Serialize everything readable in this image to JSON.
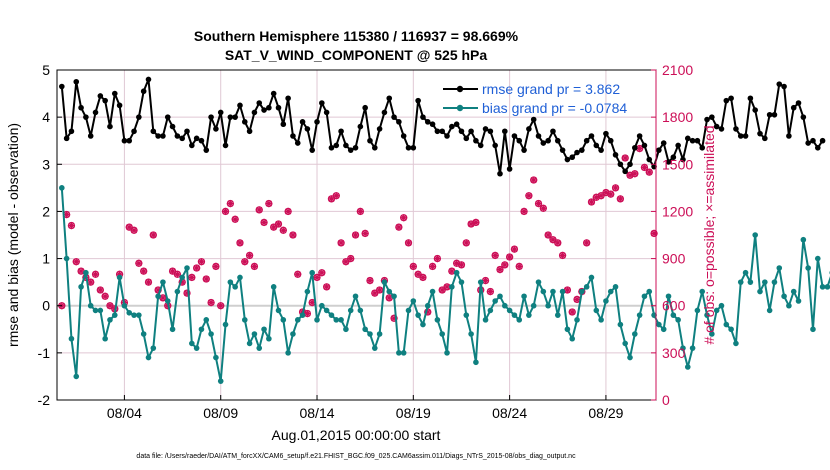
{
  "colors": {
    "rmse": "#000000",
    "bias": "#0f8080",
    "obs": "#cc0f57",
    "legend_text": "#1f5fd6",
    "grid": "#e0c8d4",
    "zero_line": "#cfcfcf"
  },
  "chart_data": {
    "type": "line",
    "title_line1": "Southern Hemisphere 115380 / 116937 = 98.669%",
    "title_line2": "SAT_V_WIND_COMPONENT @ 525 hPa",
    "ylabel_left": "rmse and bias (model - observation)",
    "ylabel_right": "# of obs: o=possible; ×=assimilated",
    "xlabel": "Aug.01,2015 00:00:00 start",
    "footer": "data file: /Users/raeder/DAI/ATM_forcXX/CAM6_setup/f.e21.FHIST_BGC.f09_025.CAM6assim.011/Diags_NTrS_2015-08/obs_diag_output.nc",
    "xlim": [
      0.5,
      31.6
    ],
    "ylim_left": [
      -2,
      5
    ],
    "ylim_right": [
      0,
      2100
    ],
    "yticks_left": [
      "-2",
      "-1",
      "0",
      "1",
      "2",
      "3",
      "4",
      "5"
    ],
    "yticks_right": [
      "0",
      "300",
      "600",
      "900",
      "1200",
      "1500",
      "1800",
      "2100"
    ],
    "xticks": [
      {
        "label": "08/04",
        "value": 4
      },
      {
        "label": "08/09",
        "value": 9
      },
      {
        "label": "08/14",
        "value": 14
      },
      {
        "label": "08/19",
        "value": 19
      },
      {
        "label": "08/24",
        "value": 24
      },
      {
        "label": "08/29",
        "value": 29
      }
    ],
    "legend": {
      "position": "top-right",
      "entries": [
        "rmse grand pr = 3.862",
        "bias grand pr = -0.0784"
      ]
    },
    "x_start": 0.75,
    "x_step": 0.25,
    "series": [
      {
        "name": "rmse",
        "values": [
          4.65,
          3.55,
          3.7,
          4.75,
          4.2,
          4.0,
          3.6,
          4.1,
          4.45,
          4.35,
          3.8,
          4.5,
          4.25,
          3.5,
          3.5,
          3.7,
          4.0,
          4.55,
          4.8,
          3.7,
          3.6,
          3.6,
          4.0,
          3.8,
          3.6,
          3.55,
          3.7,
          3.4,
          3.55,
          3.5,
          3.3,
          4.0,
          3.75,
          4.1,
          3.4,
          4.0,
          4.0,
          4.25,
          3.9,
          3.7,
          4.1,
          4.3,
          4.15,
          4.2,
          4.5,
          4.2,
          3.85,
          4.4,
          3.6,
          3.45,
          3.9,
          3.75,
          3.3,
          3.9,
          4.3,
          4.1,
          3.35,
          3.4,
          3.7,
          3.4,
          3.3,
          3.35,
          3.8,
          4.2,
          3.5,
          3.35,
          3.75,
          4.1,
          4.4,
          4.0,
          3.9,
          3.6,
          3.35,
          3.35,
          4.35,
          4.0,
          3.9,
          3.85,
          3.7,
          3.7,
          3.6,
          3.8,
          3.85,
          3.7,
          3.55,
          3.7,
          3.5,
          3.4,
          3.75,
          3.7,
          3.4,
          2.8,
          3.7,
          2.9,
          3.6,
          3.5,
          3.3,
          3.75,
          3.95,
          3.6,
          3.45,
          3.5,
          3.7,
          3.5,
          3.3,
          3.1,
          3.15,
          3.25,
          3.3,
          3.5,
          3.6,
          3.4,
          3.3,
          3.65,
          3.5,
          3.2,
          3.0,
          2.85,
          3.0,
          3.35,
          3.6,
          3.4,
          3.1,
          2.95,
          3.3,
          3.45,
          3.05,
          3.15,
          3.4,
          3.1,
          3.55,
          3.5,
          3.5,
          3.35,
          3.95,
          4.0,
          3.8,
          3.75,
          4.35,
          4.4,
          3.75,
          3.6,
          3.6,
          4.4,
          4.15,
          3.65,
          3.55,
          4.05,
          4.05,
          4.7,
          4.65,
          3.6,
          4.2,
          4.3,
          4.0,
          3.45,
          3.5,
          3.35,
          3.5
        ]
      },
      {
        "name": "bias",
        "values": [
          2.5,
          1.0,
          -0.7,
          -1.5,
          0.4,
          0.7,
          0.0,
          -0.1,
          -0.1,
          -0.7,
          -0.3,
          -0.2,
          0.6,
          0.0,
          -0.15,
          -0.2,
          -0.2,
          -0.6,
          -1.1,
          -0.9,
          0.2,
          0.5,
          0.1,
          -0.5,
          0.3,
          0.6,
          0.8,
          -0.8,
          -0.9,
          -0.5,
          -0.3,
          -0.6,
          -1.1,
          -1.6,
          -0.4,
          0.5,
          0.4,
          0.6,
          -0.3,
          -0.8,
          -0.6,
          -0.9,
          -0.5,
          -0.7,
          0.4,
          -0.1,
          -0.3,
          -1.0,
          -0.6,
          -0.3,
          -0.2,
          0.3,
          0.7,
          -0.3,
          0.0,
          -0.1,
          -0.2,
          -0.3,
          -0.3,
          -0.5,
          -0.1,
          0.2,
          -0.1,
          -0.5,
          -0.6,
          -0.9,
          -0.6,
          0.5,
          0.3,
          0.2,
          -1.0,
          -1.0,
          -0.1,
          0.1,
          -0.2,
          -0.4,
          0.0,
          0.3,
          -0.3,
          -0.6,
          -1.0,
          0.4,
          0.7,
          0.5,
          -0.2,
          -0.6,
          -1.2,
          0.5,
          -0.3,
          -0.1,
          0.1,
          0.2,
          0.0,
          -0.1,
          -0.2,
          -0.3,
          0.2,
          -0.2,
          0.0,
          0.5,
          0.3,
          0.0,
          0.3,
          -0.2,
          0.3,
          -0.5,
          -0.7,
          -0.3,
          0.3,
          0.4,
          0.6,
          -0.1,
          -0.3,
          0.1,
          0.3,
          0.4,
          -0.4,
          -0.8,
          -1.1,
          -0.6,
          -0.2,
          0.2,
          0.3,
          -0.2,
          -0.4,
          -0.5,
          0.2,
          -0.2,
          -0.3,
          -0.9,
          -1.3,
          -0.9,
          -0.1,
          0.3,
          -0.2,
          -0.6,
          -0.1,
          0.0,
          -0.4,
          -0.5,
          -0.8,
          0.5,
          0.7,
          0.5,
          1.5,
          0.3,
          0.5,
          -0.1,
          0.5,
          0.8,
          0.2,
          0.0,
          0.3,
          0.1,
          1.4,
          0.8,
          -0.5,
          1.0,
          0.4,
          0.4,
          0.7,
          0.5,
          0.4
        ]
      },
      {
        "name": "obs_possible",
        "values": [
          600,
          1180,
          1110,
          880,
          820,
          780,
          750,
          800,
          700,
          660,
          600,
          580,
          800,
          620,
          1100,
          1080,
          870,
          820,
          750,
          1050,
          700,
          650,
          600,
          820,
          800,
          750,
          680,
          780,
          840,
          880,
          770,
          620,
          850,
          600,
          1200,
          1250,
          1150,
          1000,
          880,
          920,
          850,
          1210,
          1130,
          1250,
          1100,
          1120,
          1080,
          1200,
          1050,
          800,
          560,
          550,
          620,
          780,
          810,
          720,
          1280,
          1300,
          1000,
          880,
          900,
          1050,
          1200,
          1060,
          760,
          680,
          700,
          760,
          650,
          520,
          1100,
          1160,
          1000,
          850,
          800,
          780,
          560,
          850,
          900,
          700,
          720,
          820,
          870,
          860,
          1000,
          1120,
          1130,
          700,
          760,
          690,
          920,
          830,
          860,
          910,
          960,
          850,
          1200,
          1300,
          1400,
          1250,
          1220,
          1050,
          1020,
          1000,
          920,
          700,
          560,
          640,
          690,
          1000,
          1260,
          1290,
          1300,
          1320,
          1310,
          1350,
          1280,
          1540,
          1430,
          1440,
          1600,
          1480,
          1450,
          1060,
          1000,
          860,
          760,
          700,
          620,
          560,
          600,
          670,
          800,
          850,
          930,
          1050,
          1150,
          1190,
          1220,
          1480,
          1440,
          1570,
          1640,
          1500,
          1450,
          1420,
          1550,
          1470,
          1380,
          1360,
          1200,
          1130,
          900,
          700,
          760,
          1010,
          980,
          1060,
          1030,
          840,
          700,
          650,
          600,
          900,
          950,
          1150,
          920,
          1120,
          870,
          1010,
          820,
          1100,
          1150,
          980,
          1010,
          1220,
          1160,
          700,
          830,
          1000,
          1040,
          840,
          0
        ]
      }
    ]
  }
}
